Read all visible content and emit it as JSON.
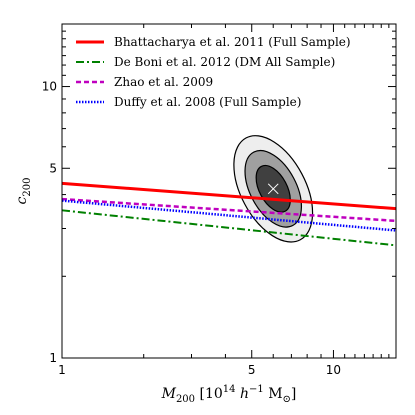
{
  "chart_data": {
    "type": "line",
    "xscale": "log",
    "yscale": "log",
    "xlim": [
      1,
      17
    ],
    "ylim": [
      1,
      17
    ],
    "xticks": [
      {
        "value": 1,
        "label": "1"
      },
      {
        "value": 5,
        "label": "5"
      },
      {
        "value": 10,
        "label": "10"
      }
    ],
    "yticks": [
      {
        "value": 1,
        "label": "1"
      },
      {
        "value": 5,
        "label": "5"
      },
      {
        "value": 10,
        "label": "10"
      }
    ],
    "xlabel": {
      "italic": "M",
      "sub": "200",
      "rest": "[10",
      "sup": "14",
      "h": "h",
      "hsup": "−1",
      "msun": "M",
      "odot": "⊙",
      "close": "]"
    },
    "ylabel": {
      "italic": "c",
      "sub": "200"
    },
    "grid": false,
    "legend_position": "top-left",
    "series": [
      {
        "name": "Bhattacharya et al. 2011 (Full Sample)",
        "color": "#ff0000",
        "style": "solid",
        "x": [
          1,
          17
        ],
        "y": [
          4.4,
          3.55
        ]
      },
      {
        "name": "De Boni et al. 2012 (DM All Sample)",
        "color": "#008000",
        "style": "dashdot",
        "x": [
          1,
          17
        ],
        "y": [
          3.5,
          2.6
        ]
      },
      {
        "name": "Zhao et al. 2009",
        "color": "#bf00bf",
        "style": "dashed",
        "x": [
          1,
          17
        ],
        "y": [
          3.85,
          3.2
        ]
      },
      {
        "name": "Duffy et al. 2008 (Full Sample)",
        "color": "#0000ff",
        "style": "dotted",
        "x": [
          1,
          17
        ],
        "y": [
          3.8,
          2.95
        ]
      }
    ],
    "contours": {
      "center": {
        "x": 6.0,
        "y": 4.2
      },
      "levels": [
        {
          "fill": "#404040",
          "stroke": "#000000",
          "sx": 0.06,
          "sy": 0.11
        },
        {
          "fill": "#a0a0a0",
          "stroke": "#000000",
          "sx": 0.1,
          "sy": 0.18
        },
        {
          "fill": "#eeeeee",
          "stroke": "#000000",
          "sx": 0.14,
          "sy": 0.25
        }
      ]
    }
  }
}
